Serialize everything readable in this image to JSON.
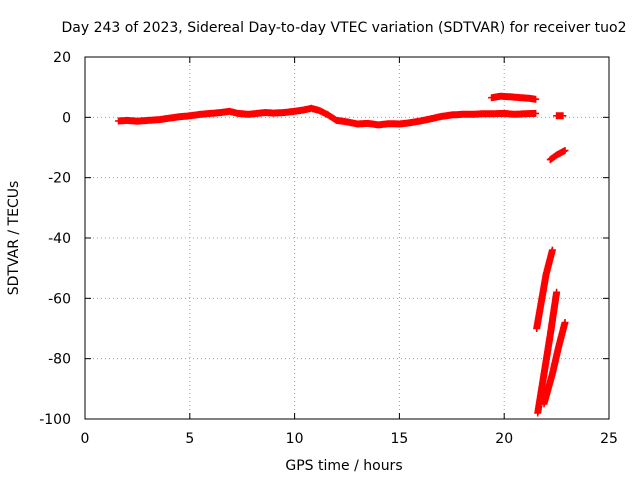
{
  "chart_data": {
    "type": "scatter",
    "title": "Day 243 of 2023, Sidereal Day-to-day VTEC variation (SDTVAR) for receiver tuo2",
    "xlabel": "GPS time / hours",
    "ylabel": "SDTVAR / TECUs",
    "xlim": [
      0,
      25
    ],
    "ylim": [
      -100,
      20
    ],
    "xticks": [
      0,
      5,
      10,
      15,
      20,
      25
    ],
    "yticks": [
      -100,
      -80,
      -60,
      -40,
      -20,
      0,
      20
    ],
    "grid": true,
    "legend": "none",
    "marker": "plus",
    "series": [
      {
        "color": "#ff0000",
        "segments": [
          [
            [
              1.6,
              -1.2
            ],
            [
              2.0,
              -1.0
            ],
            [
              2.5,
              -1.3
            ],
            [
              3.0,
              -1.0
            ],
            [
              3.5,
              -0.8
            ],
            [
              4.0,
              -0.3
            ],
            [
              4.5,
              0.2
            ],
            [
              5.0,
              0.5
            ],
            [
              5.5,
              1.0
            ],
            [
              6.0,
              1.3
            ],
            [
              6.5,
              1.6
            ],
            [
              6.9,
              2.0
            ],
            [
              7.3,
              1.3
            ],
            [
              7.8,
              1.0
            ],
            [
              8.2,
              1.3
            ],
            [
              8.6,
              1.6
            ],
            [
              9.0,
              1.4
            ],
            [
              9.5,
              1.6
            ],
            [
              10.0,
              2.0
            ],
            [
              10.4,
              2.4
            ],
            [
              10.8,
              3.0
            ],
            [
              11.2,
              2.2
            ],
            [
              11.6,
              0.8
            ],
            [
              12.0,
              -1.0
            ],
            [
              12.5,
              -1.5
            ],
            [
              13.0,
              -2.2
            ],
            [
              13.5,
              -2.0
            ],
            [
              14.0,
              -2.5
            ],
            [
              14.5,
              -2.1
            ],
            [
              15.0,
              -2.2
            ],
            [
              15.5,
              -1.8
            ],
            [
              16.0,
              -1.2
            ],
            [
              16.5,
              -0.5
            ],
            [
              17.0,
              0.3
            ],
            [
              17.5,
              0.8
            ],
            [
              18.0,
              1.0
            ],
            [
              18.5,
              1.0
            ],
            [
              19.0,
              1.2
            ],
            [
              19.5,
              1.2
            ],
            [
              20.0,
              1.3
            ],
            [
              20.5,
              1.0
            ],
            [
              21.0,
              1.2
            ],
            [
              21.5,
              1.3
            ]
          ],
          [
            [
              19.4,
              6.5
            ],
            [
              19.8,
              7.0
            ],
            [
              20.3,
              6.8
            ],
            [
              20.8,
              6.5
            ],
            [
              21.2,
              6.3
            ],
            [
              21.5,
              6.0
            ]
          ],
          [
            [
              22.5,
              0.5
            ],
            [
              22.8,
              0.5
            ]
          ],
          [
            [
              22.2,
              -14.0
            ],
            [
              22.5,
              -12.5
            ],
            [
              22.9,
              -11.0
            ]
          ],
          [
            [
              21.55,
              -70.0
            ],
            [
              21.8,
              -60.0
            ],
            [
              22.0,
              -52.0
            ],
            [
              22.3,
              -44.0
            ]
          ],
          [
            [
              21.6,
              -98.0
            ],
            [
              21.9,
              -85.0
            ],
            [
              22.2,
              -72.0
            ],
            [
              22.5,
              -58.0
            ]
          ],
          [
            [
              21.9,
              -95.0
            ],
            [
              22.3,
              -85.0
            ],
            [
              22.6,
              -76.0
            ],
            [
              22.9,
              -68.0
            ]
          ]
        ]
      }
    ]
  }
}
